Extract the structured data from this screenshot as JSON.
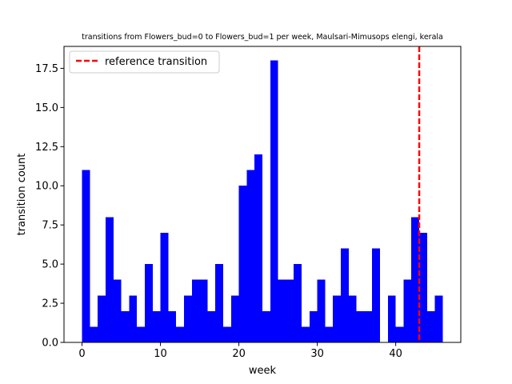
{
  "chart_data": {
    "type": "bar",
    "title": "transitions from Flowers_bud=0 to Flowers_bud=1 per week, Maulsari-Mimusops elengi, kerala",
    "xlabel": "week",
    "ylabel": "transition count",
    "xlim": [
      -2.3,
      48.3
    ],
    "ylim": [
      0,
      18.9
    ],
    "bin_width": 1,
    "x_ticks": [
      0,
      10,
      20,
      30,
      40
    ],
    "x_tick_labels": [
      "0",
      "10",
      "20",
      "30",
      "40"
    ],
    "y_ticks": [
      0,
      2.5,
      5,
      7.5,
      10,
      12.5,
      15,
      17.5
    ],
    "y_tick_labels": [
      "0.0",
      "2.5",
      "5.0",
      "7.5",
      "10.0",
      "12.5",
      "15.0",
      "17.5"
    ],
    "bar_color": "#0000ff",
    "bins": [
      {
        "x": 0,
        "value": 11
      },
      {
        "x": 1,
        "value": 1
      },
      {
        "x": 2,
        "value": 3
      },
      {
        "x": 3,
        "value": 8
      },
      {
        "x": 4,
        "value": 4
      },
      {
        "x": 5,
        "value": 2
      },
      {
        "x": 6,
        "value": 3
      },
      {
        "x": 7,
        "value": 1
      },
      {
        "x": 8,
        "value": 5
      },
      {
        "x": 9,
        "value": 2
      },
      {
        "x": 10,
        "value": 7
      },
      {
        "x": 11,
        "value": 2
      },
      {
        "x": 12,
        "value": 1
      },
      {
        "x": 13,
        "value": 3
      },
      {
        "x": 14,
        "value": 4
      },
      {
        "x": 15,
        "value": 4
      },
      {
        "x": 16,
        "value": 2
      },
      {
        "x": 17,
        "value": 5
      },
      {
        "x": 18,
        "value": 1
      },
      {
        "x": 19,
        "value": 3
      },
      {
        "x": 20,
        "value": 10
      },
      {
        "x": 21,
        "value": 11
      },
      {
        "x": 22,
        "value": 12
      },
      {
        "x": 23,
        "value": 2
      },
      {
        "x": 24,
        "value": 18
      },
      {
        "x": 25,
        "value": 4
      },
      {
        "x": 26,
        "value": 4
      },
      {
        "x": 27,
        "value": 5
      },
      {
        "x": 28,
        "value": 1
      },
      {
        "x": 29,
        "value": 2
      },
      {
        "x": 30,
        "value": 4
      },
      {
        "x": 31,
        "value": 1
      },
      {
        "x": 32,
        "value": 3
      },
      {
        "x": 33,
        "value": 6
      },
      {
        "x": 34,
        "value": 3
      },
      {
        "x": 35,
        "value": 2
      },
      {
        "x": 36,
        "value": 2
      },
      {
        "x": 37,
        "value": 6
      },
      {
        "x": 38,
        "value": 0
      },
      {
        "x": 39,
        "value": 3
      },
      {
        "x": 40,
        "value": 1
      },
      {
        "x": 41,
        "value": 4
      },
      {
        "x": 42,
        "value": 8
      },
      {
        "x": 43,
        "value": 7
      },
      {
        "x": 44,
        "value": 2
      },
      {
        "x": 45,
        "value": 3
      }
    ],
    "reference_line": {
      "x": 43,
      "label": "reference transition",
      "color": "#ff0000",
      "style": "dashed"
    },
    "legend_position": "top-left",
    "grid": false
  }
}
